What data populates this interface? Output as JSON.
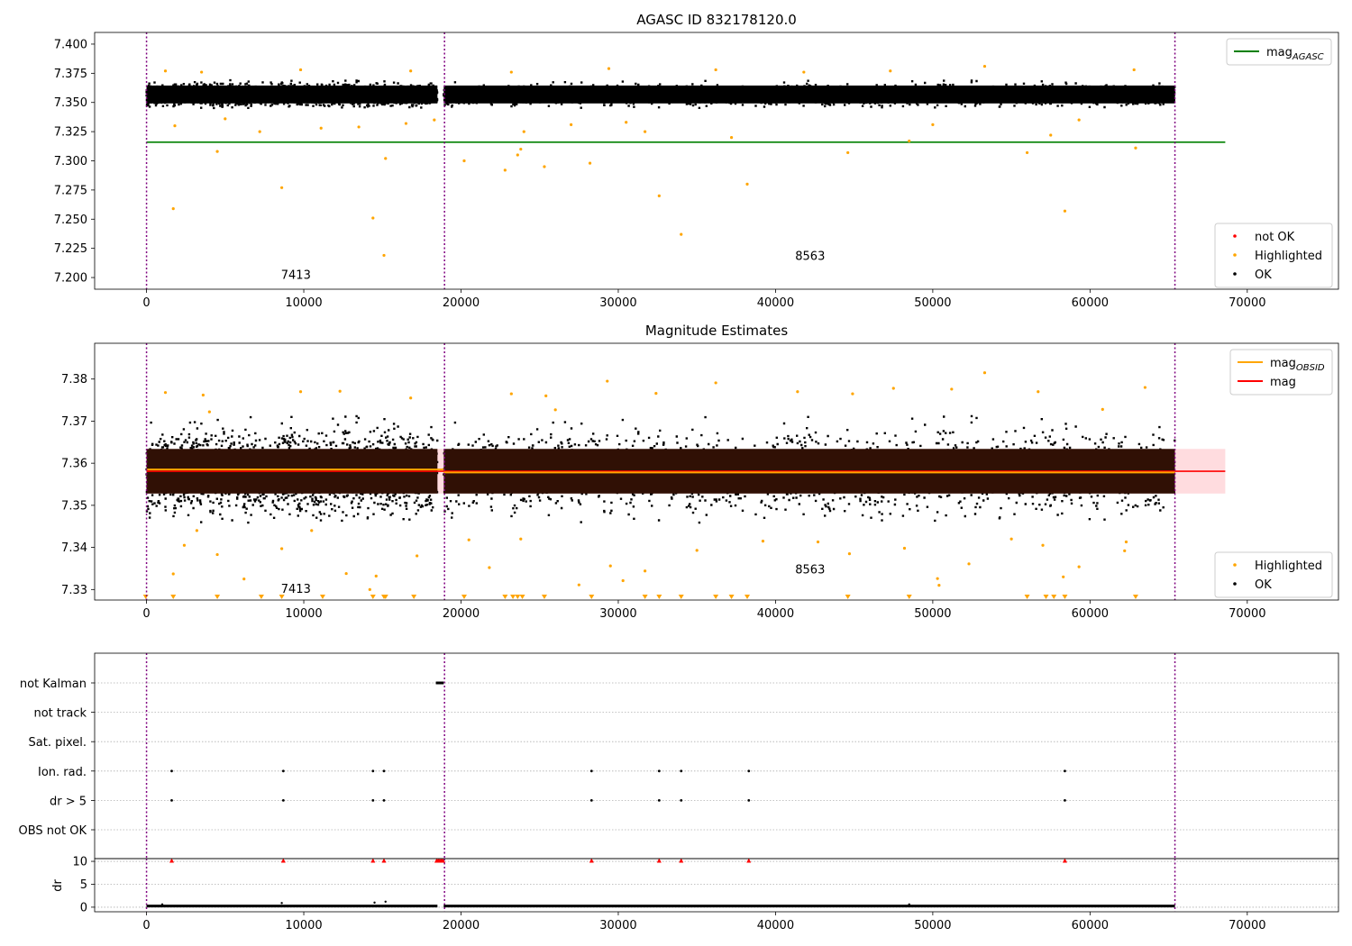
{
  "chart_data": [
    {
      "type": "scatter",
      "title": "AGASC ID 832178120.0",
      "xlim": [
        -3300,
        75800
      ],
      "ylim": [
        7.19,
        7.41
      ],
      "xticks": [
        0,
        10000,
        20000,
        30000,
        40000,
        50000,
        60000,
        70000
      ],
      "yticks": [
        7.2,
        7.225,
        7.25,
        7.275,
        7.3,
        7.325,
        7.35,
        7.375,
        7.4
      ],
      "ytick_labels": [
        "7.200",
        "7.225",
        "7.250",
        "7.275",
        "7.300",
        "7.325",
        "7.350",
        "7.375",
        "7.400"
      ],
      "obs_boundaries": [
        0,
        18950,
        65400
      ],
      "obs_labels": [
        {
          "x": 9500,
          "y": 7.199,
          "text": "7413"
        },
        {
          "x": 42200,
          "y": 7.215,
          "text": "8563"
        }
      ],
      "mag_agasc": {
        "value": 7.316,
        "x_range": [
          0,
          68600
        ],
        "color": "#008000"
      },
      "band": {
        "y": [
          7.343,
          7.373
        ],
        "segments": [
          [
            0,
            18500
          ],
          [
            18900,
            65400
          ]
        ],
        "color": "#000000"
      },
      "highlighted_points": [
        [
          1700,
          7.259
        ],
        [
          4500,
          7.308
        ],
        [
          8600,
          7.277
        ],
        [
          14400,
          7.251
        ],
        [
          15100,
          7.219
        ],
        [
          15200,
          7.302
        ],
        [
          20200,
          7.3
        ],
        [
          22800,
          7.292
        ],
        [
          23600,
          7.305
        ],
        [
          23800,
          7.31
        ],
        [
          25300,
          7.295
        ],
        [
          28200,
          7.298
        ],
        [
          32600,
          7.27
        ],
        [
          34000,
          7.237
        ],
        [
          38200,
          7.28
        ],
        [
          44600,
          7.307
        ],
        [
          48500,
          7.317
        ],
        [
          56000,
          7.307
        ],
        [
          58400,
          7.257
        ],
        [
          62900,
          7.311
        ],
        [
          1800,
          7.33
        ],
        [
          5000,
          7.336
        ],
        [
          7200,
          7.325
        ],
        [
          11100,
          7.328
        ],
        [
          13500,
          7.329
        ],
        [
          16500,
          7.332
        ],
        [
          18300,
          7.335
        ],
        [
          24000,
          7.325
        ],
        [
          27000,
          7.331
        ],
        [
          30500,
          7.333
        ],
        [
          31700,
          7.325
        ],
        [
          37200,
          7.32
        ],
        [
          50000,
          7.331
        ],
        [
          57500,
          7.322
        ],
        [
          59300,
          7.335
        ],
        [
          1200,
          7.377
        ],
        [
          3500,
          7.376
        ],
        [
          9800,
          7.378
        ],
        [
          16800,
          7.377
        ],
        [
          23200,
          7.376
        ],
        [
          29400,
          7.379
        ],
        [
          36200,
          7.378
        ],
        [
          41800,
          7.376
        ],
        [
          47300,
          7.377
        ],
        [
          53300,
          7.381
        ],
        [
          62800,
          7.378
        ]
      ],
      "legends": [
        {
          "position": "upper-right",
          "entries": [
            {
              "label": "mag",
              "sub": "AGASC",
              "kind": "line",
              "color": "#008000"
            }
          ]
        },
        {
          "position": "lower-right",
          "entries": [
            {
              "label": "not OK",
              "kind": "point",
              "color": "#ff0000"
            },
            {
              "label": "Highlighted",
              "kind": "point",
              "color": "#ffa500"
            },
            {
              "label": "OK",
              "kind": "point",
              "color": "#000000"
            }
          ]
        }
      ]
    },
    {
      "type": "scatter",
      "title": "Magnitude Estimates",
      "xlim": [
        -3300,
        75800
      ],
      "ylim": [
        7.3275,
        7.3885
      ],
      "xticks": [
        0,
        10000,
        20000,
        30000,
        40000,
        50000,
        60000,
        70000
      ],
      "yticks": [
        7.33,
        7.34,
        7.35,
        7.36,
        7.37,
        7.38
      ],
      "ytick_labels": [
        "7.33",
        "7.34",
        "7.35",
        "7.36",
        "7.37",
        "7.38"
      ],
      "obs_boundaries": [
        0,
        18950,
        65400
      ],
      "obs_labels": [
        {
          "x": 9500,
          "y": 7.3292,
          "text": "7413"
        },
        {
          "x": 42200,
          "y": 7.3338,
          "text": "8563"
        }
      ],
      "mag_band": {
        "y": [
          7.3528,
          7.3634
        ],
        "x_range": [
          0,
          68600
        ],
        "color": "#ffc0c5"
      },
      "mag_line": {
        "value": 7.3581,
        "x_range": [
          0,
          68600
        ],
        "color": "#ff0000"
      },
      "mag_obsid": [
        {
          "x_range": [
            0,
            18900
          ],
          "value": 7.3585
        },
        {
          "x_range": [
            18900,
            65400
          ],
          "value": 7.3578
        }
      ],
      "mag_obsid_color": "#ffa500",
      "dense_band": {
        "y": [
          7.3445,
          7.3715
        ],
        "segments": [
          [
            0,
            18500
          ],
          [
            18900,
            65400
          ]
        ]
      },
      "inner_box": {
        "y": [
          7.3528,
          7.3634
        ],
        "segments": [
          [
            0,
            18500
          ],
          [
            18900,
            65400
          ]
        ],
        "color": "#301005"
      },
      "highlighted_points": [
        [
          1700,
          7.3337
        ],
        [
          2400,
          7.3405
        ],
        [
          3200,
          7.344
        ],
        [
          4500,
          7.3383
        ],
        [
          6200,
          7.3325
        ],
        [
          8600,
          7.3397
        ],
        [
          10500,
          7.344
        ],
        [
          12700,
          7.3338
        ],
        [
          14200,
          7.33
        ],
        [
          14600,
          7.3332
        ],
        [
          17200,
          7.338
        ],
        [
          20500,
          7.3418
        ],
        [
          21800,
          7.3352
        ],
        [
          23800,
          7.342
        ],
        [
          27500,
          7.3311
        ],
        [
          29500,
          7.3356
        ],
        [
          30300,
          7.3321
        ],
        [
          31700,
          7.3344
        ],
        [
          35000,
          7.3393
        ],
        [
          39200,
          7.3415
        ],
        [
          42700,
          7.3413
        ],
        [
          44700,
          7.3385
        ],
        [
          48200,
          7.3398
        ],
        [
          50300,
          7.3326
        ],
        [
          50400,
          7.331
        ],
        [
          52300,
          7.3361
        ],
        [
          55000,
          7.342
        ],
        [
          57000,
          7.3405
        ],
        [
          58300,
          7.333
        ],
        [
          59300,
          7.3354
        ],
        [
          62200,
          7.3392
        ],
        [
          62300,
          7.3413
        ],
        [
          1200,
          7.3768
        ],
        [
          3600,
          7.3762
        ],
        [
          9800,
          7.377
        ],
        [
          12300,
          7.3771
        ],
        [
          16800,
          7.3755
        ],
        [
          23200,
          7.3765
        ],
        [
          25400,
          7.376
        ],
        [
          29300,
          7.3795
        ],
        [
          32400,
          7.3766
        ],
        [
          36200,
          7.3791
        ],
        [
          41400,
          7.377
        ],
        [
          44900,
          7.3765
        ],
        [
          47500,
          7.3778
        ],
        [
          51200,
          7.3776
        ],
        [
          53300,
          7.3815
        ],
        [
          56700,
          7.377
        ],
        [
          63500,
          7.378
        ],
        [
          4000,
          7.3722
        ],
        [
          26000,
          7.3727
        ],
        [
          60800,
          7.3728
        ]
      ],
      "clipped_points_x": [
        -50,
        1700,
        4500,
        7300,
        8600,
        11200,
        14400,
        15100,
        15200,
        17000,
        20200,
        22800,
        23300,
        23600,
        23900,
        25300,
        28300,
        31700,
        32600,
        34000,
        36200,
        37200,
        38200,
        44600,
        48500,
        56000,
        57200,
        57700,
        58400,
        62900
      ],
      "legends": [
        {
          "position": "upper-right",
          "entries": [
            {
              "label": "mag",
              "sub": "OBSID",
              "kind": "line",
              "color": "#ffa500"
            },
            {
              "label": "mag",
              "kind": "line",
              "color": "#ff0000"
            }
          ]
        },
        {
          "position": "lower-right",
          "entries": [
            {
              "label": "Highlighted",
              "kind": "point",
              "color": "#ffa500"
            },
            {
              "label": "OK",
              "kind": "point",
              "color": "#000000"
            }
          ]
        }
      ]
    },
    {
      "type": "scatter",
      "title": "",
      "xlim": [
        -3300,
        75800
      ],
      "rows": [
        "not Kalman",
        "not track",
        "Sat. pixel.",
        "Ion. rad.",
        "dr > 5",
        "OBS not OK"
      ],
      "obs_boundaries": [
        0,
        18950,
        65400
      ],
      "not_kalman_x_range": [
        18400,
        18900
      ],
      "ion_rad_x": [
        1600,
        8700,
        14400,
        15100,
        28300,
        32600,
        34000,
        38300,
        58400
      ],
      "dr5_x": [
        1600,
        8700,
        14400,
        15100,
        28300,
        32600,
        34000,
        38300,
        58400
      ],
      "dr_panel": {
        "ylabel": "dr",
        "ylim": [
          -1,
          10.6
        ],
        "yticks": [
          0,
          5,
          10
        ],
        "ytick_labels": [
          "0",
          "5",
          "10"
        ],
        "xticks": [
          0,
          10000,
          20000,
          30000,
          40000,
          50000,
          60000,
          70000
        ],
        "clipped_x": [
          1600,
          8700,
          14400,
          15100,
          18450,
          18550,
          18650,
          18750,
          18850,
          28300,
          32600,
          34000,
          38300,
          58400
        ],
        "baseline_segments": [
          [
            0,
            18500
          ],
          [
            18900,
            65400
          ]
        ]
      }
    }
  ]
}
